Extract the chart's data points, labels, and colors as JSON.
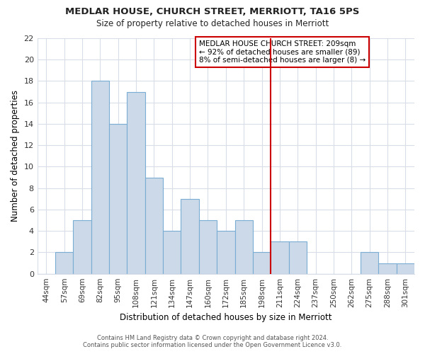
{
  "title": "MEDLAR HOUSE, CHURCH STREET, MERRIOTT, TA16 5PS",
  "subtitle": "Size of property relative to detached houses in Merriott",
  "xlabel": "Distribution of detached houses by size in Merriott",
  "ylabel": "Number of detached properties",
  "bar_labels": [
    "44sqm",
    "57sqm",
    "69sqm",
    "82sqm",
    "95sqm",
    "108sqm",
    "121sqm",
    "134sqm",
    "147sqm",
    "160sqm",
    "172sqm",
    "185sqm",
    "198sqm",
    "211sqm",
    "224sqm",
    "237sqm",
    "250sqm",
    "262sqm",
    "275sqm",
    "288sqm",
    "301sqm"
  ],
  "bar_values": [
    0,
    2,
    5,
    18,
    14,
    17,
    9,
    4,
    7,
    5,
    4,
    5,
    2,
    3,
    3,
    0,
    0,
    0,
    2,
    1,
    1
  ],
  "bar_color": "#ccd9e8",
  "bar_edge_color": "#7aadd4",
  "background_color": "#ffffff",
  "grid_color": "#d8dde8",
  "vline_x_idx": 13,
  "vline_color": "#cc0000",
  "ylim": [
    0,
    22
  ],
  "yticks": [
    0,
    2,
    4,
    6,
    8,
    10,
    12,
    14,
    16,
    18,
    20,
    22
  ],
  "annotation_title": "MEDLAR HOUSE CHURCH STREET: 209sqm",
  "annotation_line1": "← 92% of detached houses are smaller (89)",
  "annotation_line2": "8% of semi-detached houses are larger (8) →",
  "footer_line1": "Contains HM Land Registry data © Crown copyright and database right 2024.",
  "footer_line2": "Contains public sector information licensed under the Open Government Licence v3.0."
}
